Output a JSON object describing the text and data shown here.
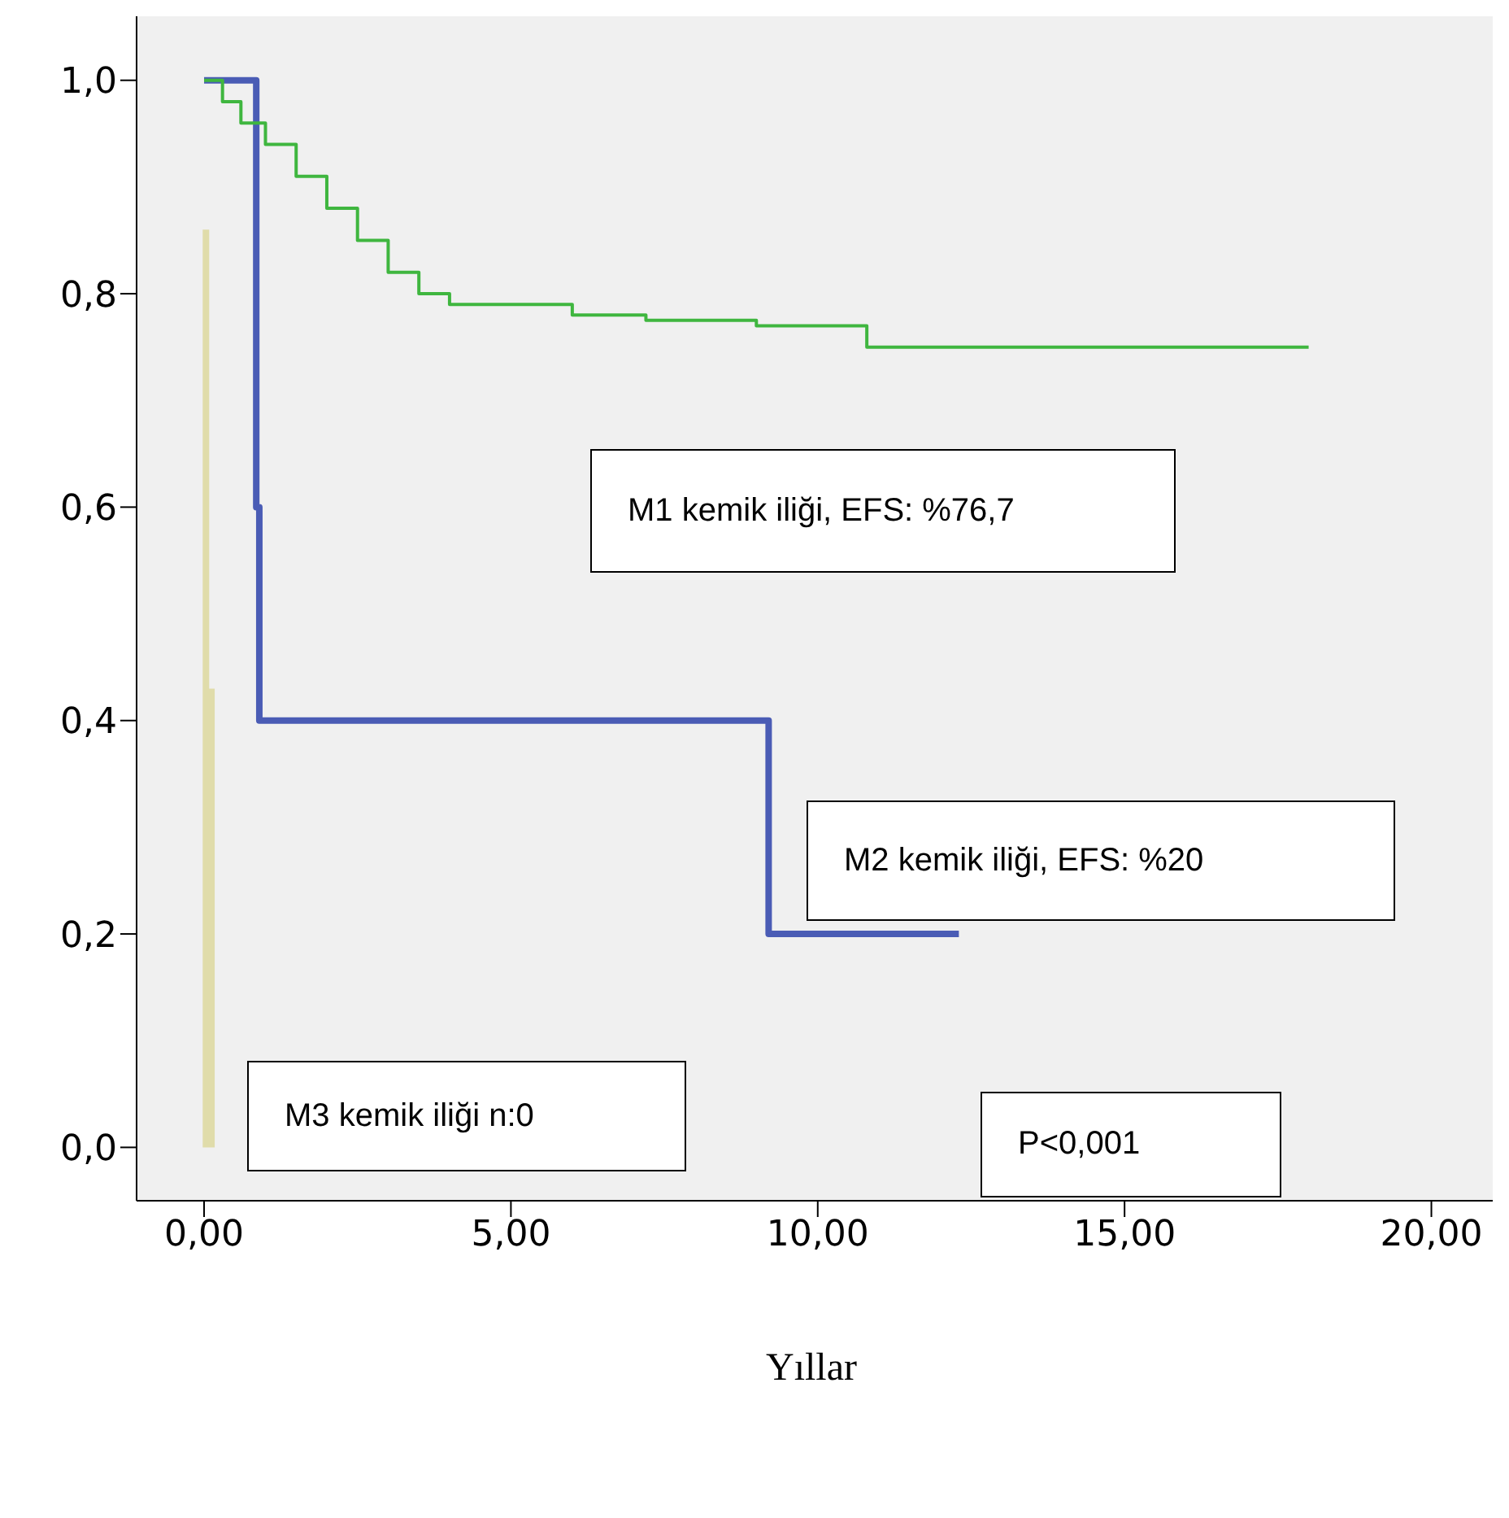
{
  "chart_data": {
    "type": "step",
    "xlabel": "Yıllar",
    "xlim": [
      -1.1,
      21
    ],
    "xticks": [
      {
        "value": 0,
        "label": "0,00"
      },
      {
        "value": 5,
        "label": "5,00"
      },
      {
        "value": 10,
        "label": "10,00"
      },
      {
        "value": 15,
        "label": "15,00"
      },
      {
        "value": 20,
        "label": "20,00"
      }
    ],
    "ylim": [
      -0.05,
      1.06
    ],
    "yticks": [
      {
        "value": 0,
        "label": "0,0"
      },
      {
        "value": 0.2,
        "label": "0,2"
      },
      {
        "value": 0.4,
        "label": "0,4"
      },
      {
        "value": 0.6,
        "label": "0,6"
      },
      {
        "value": 0.8,
        "label": "0,8"
      },
      {
        "value": 1,
        "label": "1,0"
      }
    ],
    "grid": false,
    "legend": false,
    "series": [
      {
        "color": "#3fb63f",
        "x": [
          0,
          0.3,
          0.6,
          1,
          1.5,
          2,
          2.5,
          3,
          3.5,
          4,
          6,
          7.2,
          9,
          10.8,
          18
        ],
        "values": [
          1,
          0.98,
          0.96,
          0.94,
          0.91,
          0.88,
          0.85,
          0.82,
          0.8,
          0.79,
          0.78,
          0.775,
          0.77,
          0.75,
          0.75
        ]
      },
      {
        "color": "#4a5cb5",
        "x": [
          0,
          0.85,
          0.9,
          9.2,
          12.3
        ],
        "values": [
          1,
          0.6,
          0.4,
          0.2,
          0.2
        ]
      },
      {
        "color": "#e0dcaa",
        "x": [
          0.03,
          0.03,
          0.08,
          0.12,
          0.12
        ],
        "values": [
          0.86,
          0,
          null,
          0.43,
          0
        ]
      }
    ],
    "annotations": [
      "M1 kemik iliği, EFS: %76,7",
      "M2 kemik iliği, EFS: %20",
      "M3 kemik iliği n:0",
      "P<0,001"
    ]
  }
}
